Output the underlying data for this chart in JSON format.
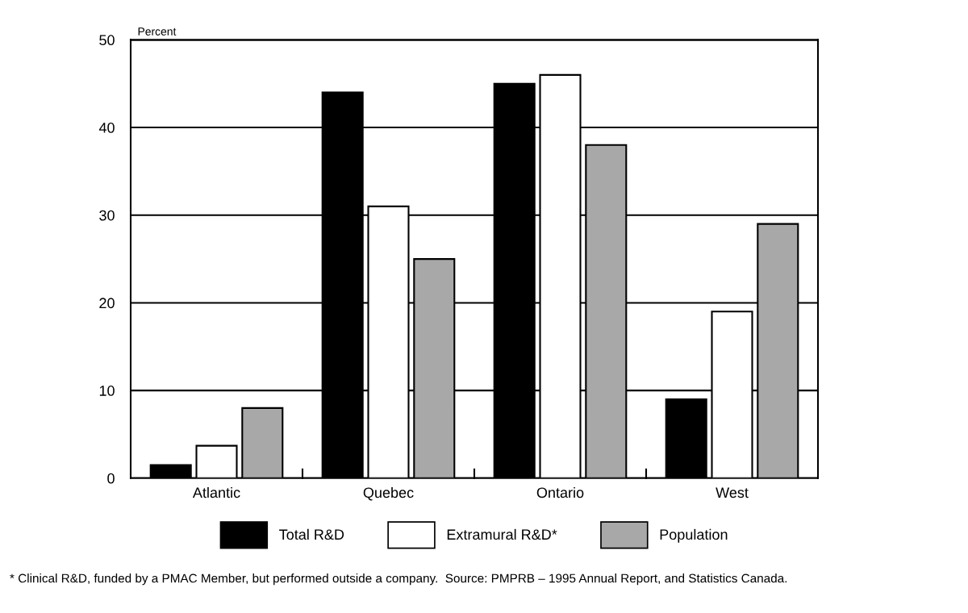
{
  "chart_data": {
    "type": "bar",
    "ylabel": "Percent",
    "categories": [
      "Atlantic",
      "Quebec",
      "Ontario",
      "West"
    ],
    "series": [
      {
        "name": "Total R&D",
        "color": "#000000",
        "values": [
          1.5,
          44,
          45,
          9
        ]
      },
      {
        "name": "Extramural R&D*",
        "color": "#ffffff",
        "values": [
          3.7,
          31,
          46,
          19
        ]
      },
      {
        "name": "Population",
        "color": "#a8a8a8",
        "values": [
          8,
          25,
          38,
          29
        ]
      }
    ],
    "ylim": [
      0,
      50
    ],
    "yticks": [
      0,
      10,
      20,
      30,
      40,
      50
    ],
    "grid": "y",
    "legend": "bottom",
    "annotations": [
      "* Clinical R&D, funded by a PMAC Member, but performed outside a company.  Source: PMPRB – 1995 Annual Report, and Statistics Canada."
    ]
  }
}
